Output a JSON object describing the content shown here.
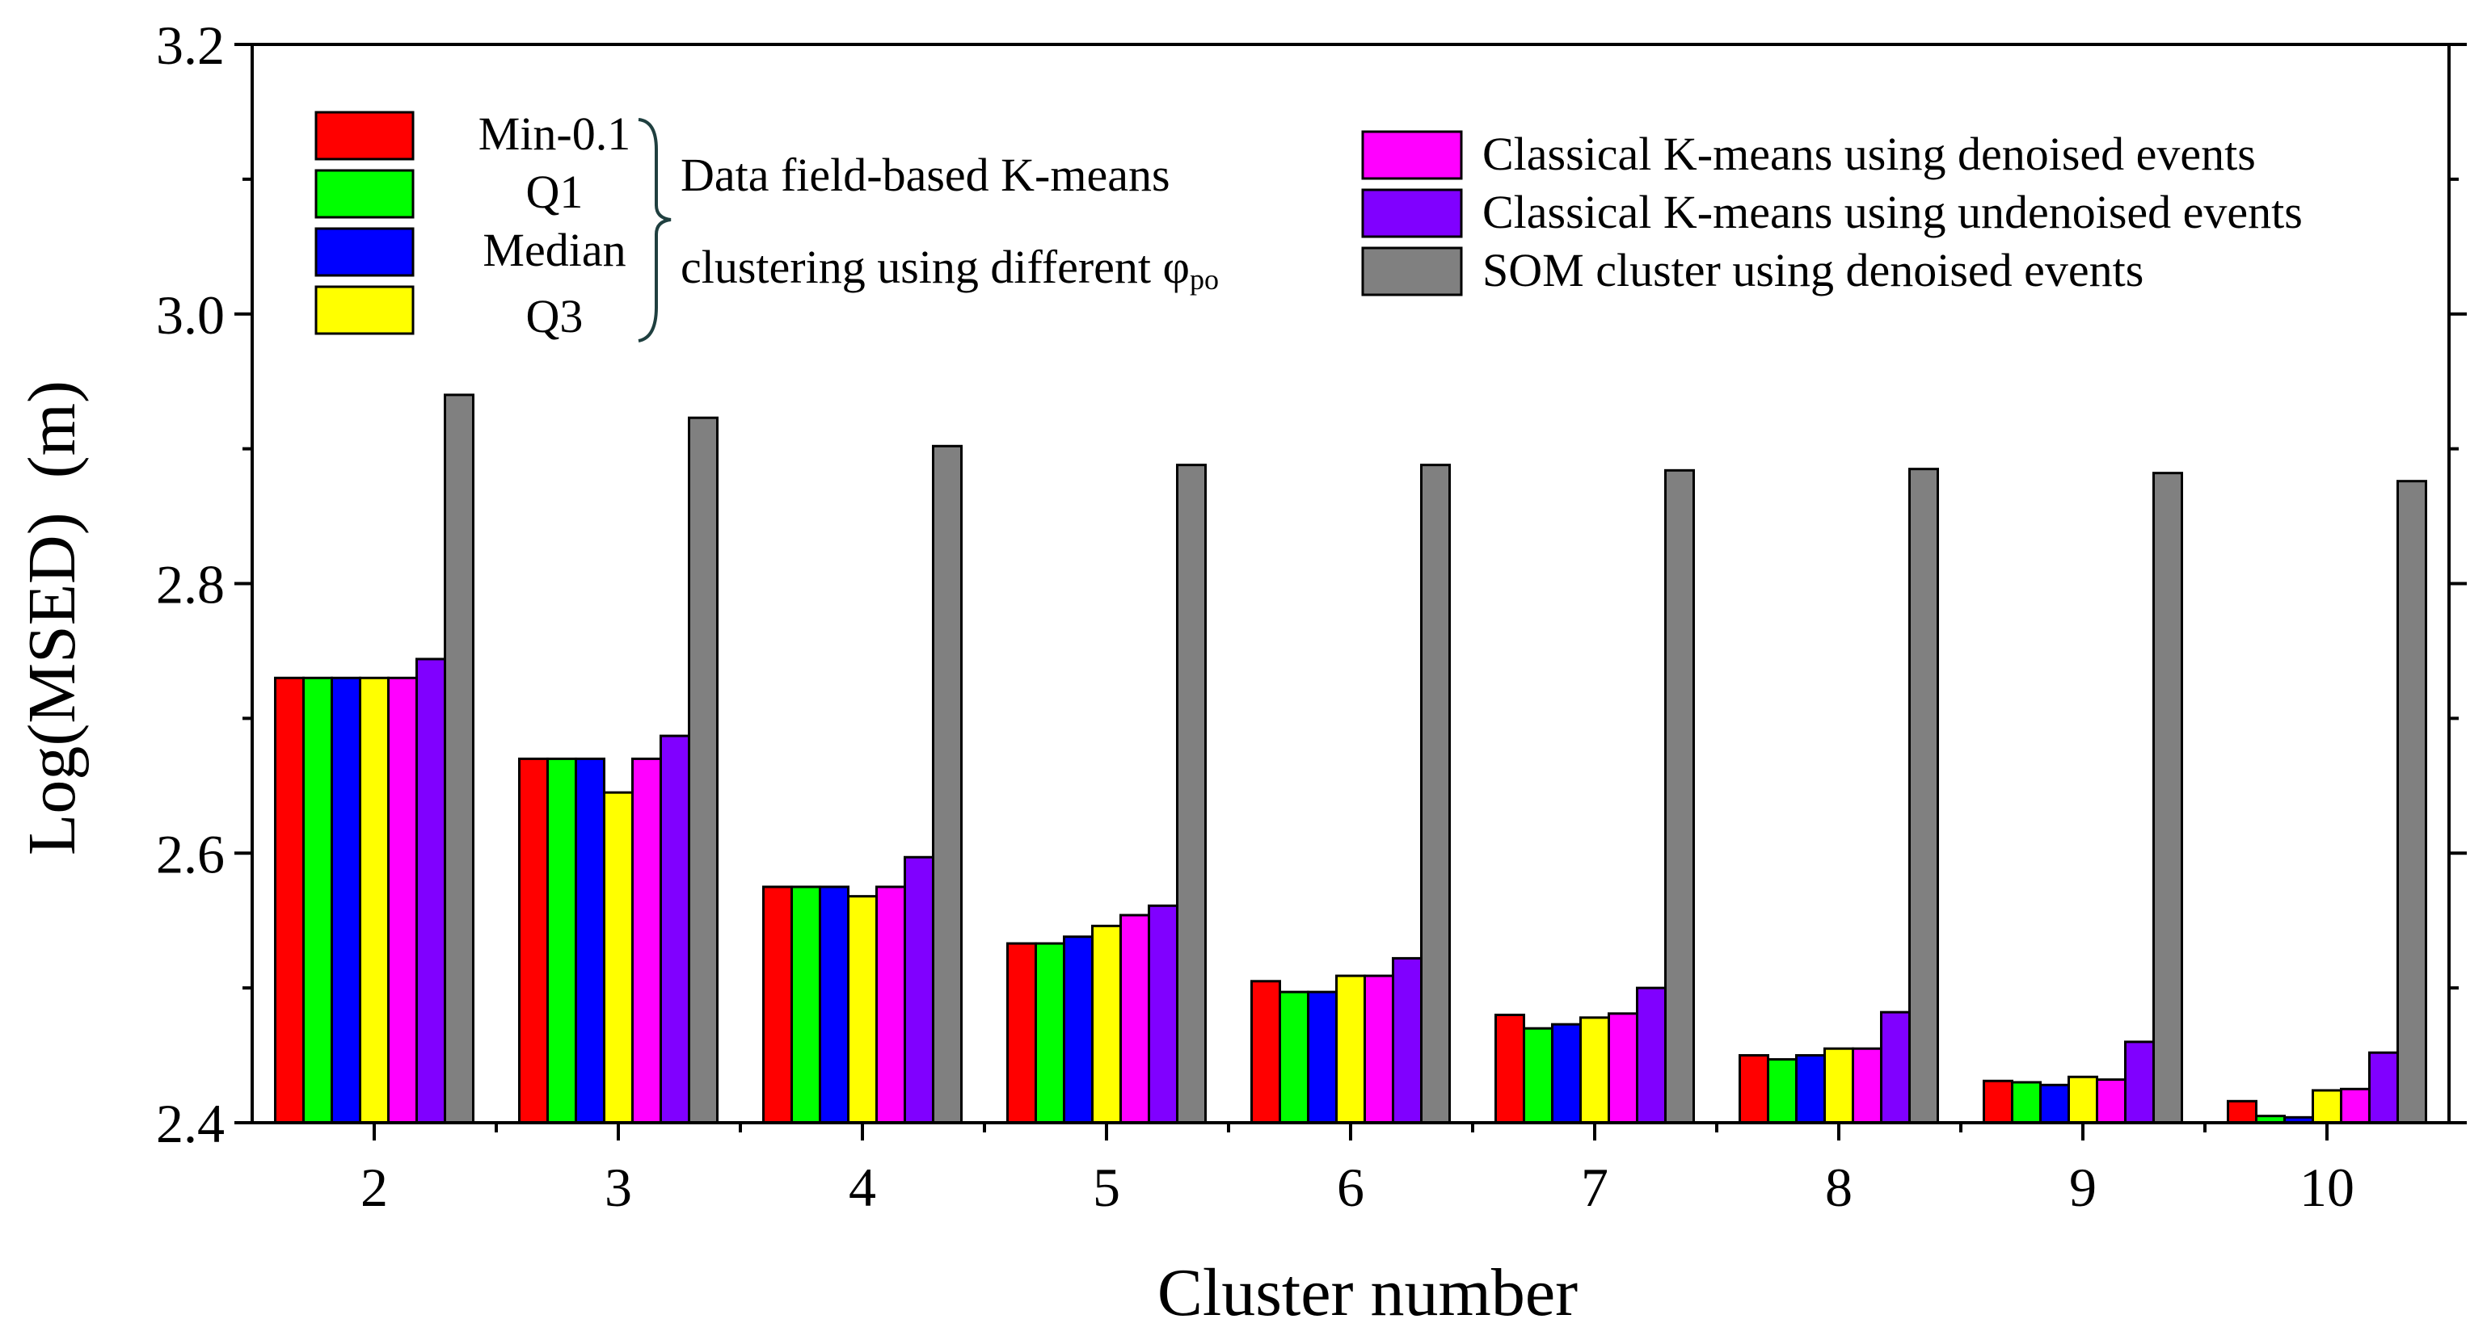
{
  "chart_data": {
    "type": "bar",
    "title": "",
    "xlabel": "Cluster number",
    "ylabel": "Log(MSED)  (m)",
    "ylim": [
      2.4,
      3.2
    ],
    "yticks": [
      "2.4",
      "2.6",
      "2.8",
      "3.0",
      "3.2"
    ],
    "categories": [
      "2",
      "3",
      "4",
      "5",
      "6",
      "7",
      "8",
      "9",
      "10"
    ],
    "series": [
      {
        "name": "Min-0.1",
        "color": "#ff0000",
        "values": [
          2.73,
          2.67,
          2.575,
          2.533,
          2.505,
          2.48,
          2.45,
          2.431,
          2.416
        ]
      },
      {
        "name": "Q1",
        "color": "#00ff00",
        "values": [
          2.73,
          2.67,
          2.575,
          2.533,
          2.497,
          2.47,
          2.447,
          2.43,
          2.405
        ]
      },
      {
        "name": "Median",
        "color": "#0000ff",
        "values": [
          2.73,
          2.67,
          2.575,
          2.538,
          2.497,
          2.473,
          2.45,
          2.428,
          2.404
        ]
      },
      {
        "name": "Q3",
        "color": "#ffff00",
        "values": [
          2.73,
          2.645,
          2.568,
          2.546,
          2.509,
          2.478,
          2.455,
          2.434,
          2.424
        ]
      },
      {
        "name": "Classical K-means using denoised events",
        "color": "#ff00ff",
        "values": [
          2.73,
          2.67,
          2.575,
          2.554,
          2.509,
          2.481,
          2.455,
          2.432,
          2.425
        ]
      },
      {
        "name": "Classical K-means using undenoised events",
        "color": "#8000ff",
        "values": [
          2.744,
          2.687,
          2.597,
          2.561,
          2.522,
          2.5,
          2.482,
          2.46,
          2.452
        ]
      },
      {
        "name": "SOM cluster using denoised events",
        "color": "#808080",
        "values": [
          2.94,
          2.923,
          2.902,
          2.888,
          2.888,
          2.884,
          2.885,
          2.882,
          2.876
        ]
      }
    ],
    "legend": {
      "group_labels": [
        "Min-0.1",
        "Q1",
        "Median",
        "Q3"
      ],
      "group_caption_line1": "Data field-based K-means",
      "group_caption_line2": "clustering using different φ",
      "group_caption_subscript": "po",
      "right_labels": [
        "Classical K-means using denoised events",
        "Classical K-means using undenoised events",
        "SOM cluster using denoised events"
      ]
    }
  }
}
